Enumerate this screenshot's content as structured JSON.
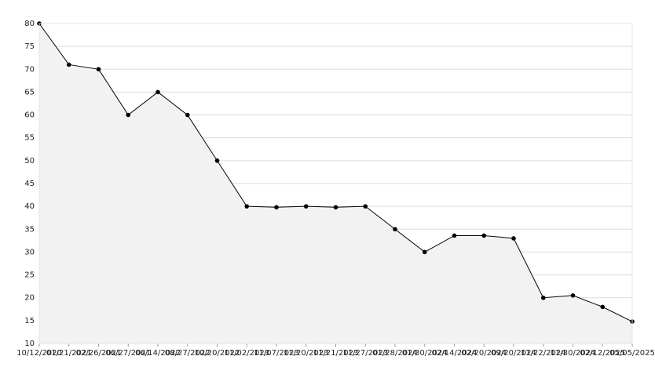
{
  "chart_data": {
    "type": "line",
    "categories": [
      "10/12/2020",
      "01/21/2021",
      "02/26/2021",
      "06/27/2021",
      "06/14/2022",
      "08/27/2022",
      "10/20/2022",
      "11/02/2023",
      "11/07/2023",
      "11/20/2023",
      "11/21/2023",
      "11/27/2023",
      "01/28/2024",
      "01/30/2024",
      "02/14/2024",
      "02/20/2024",
      "09/20/2024",
      "11/22/2024",
      "11/30/2024",
      "02/12/2025",
      "05/05/2025"
    ],
    "values": [
      80,
      71,
      70,
      60,
      65,
      60,
      50,
      40,
      39.8,
      40,
      39.8,
      40,
      35,
      30,
      33.6,
      33.6,
      33,
      20,
      20.5,
      18,
      14.8
    ],
    "color": "#000000",
    "fill": "#f2f2f2",
    "ylim": [
      10,
      80
    ],
    "yticks": [
      10,
      15,
      20,
      25,
      30,
      35,
      40,
      45,
      50,
      55,
      60,
      65,
      70,
      75,
      80
    ],
    "grid": true
  }
}
